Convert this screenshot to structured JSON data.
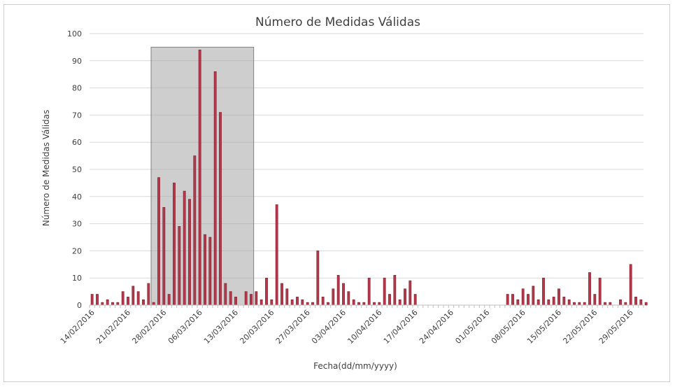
{
  "chart_data": {
    "type": "bar",
    "title": "Número de Medidas Válidas",
    "xlabel": "Fecha(dd/mm/yyyy)",
    "ylabel": "Número de Medidas Válidas",
    "ylim": [
      0,
      100
    ],
    "yticks": [
      0,
      10,
      20,
      30,
      40,
      50,
      60,
      70,
      80,
      90,
      100
    ],
    "grid": true,
    "x_start": "14/02/2016",
    "x_end": "31/05/2016",
    "xtick_labels": [
      "14/02/2016",
      "21/02/2016",
      "28/02/2016",
      "06/03/2016",
      "13/03/2016",
      "20/03/2016",
      "27/03/2016",
      "03/04/2016",
      "10/04/2016",
      "17/04/2016",
      "24/04/2016",
      "01/05/2016",
      "08/05/2016",
      "15/05/2016",
      "22/05/2016",
      "29/05/2016"
    ],
    "highlight": {
      "from": "26/02/2016",
      "to": "16/03/2016",
      "color": "#a6a6a6"
    },
    "bar_color": "#b5374a",
    "bar_edge_color": "#7a1f2e",
    "series": [
      {
        "values": [
          [
            "14/02/2016",
            4
          ],
          [
            "15/02/2016",
            4
          ],
          [
            "16/02/2016",
            1
          ],
          [
            "17/02/2016",
            2
          ],
          [
            "18/02/2016",
            1
          ],
          [
            "19/02/2016",
            1
          ],
          [
            "20/02/2016",
            5
          ],
          [
            "21/02/2016",
            3
          ],
          [
            "22/02/2016",
            7
          ],
          [
            "23/02/2016",
            5
          ],
          [
            "24/02/2016",
            2
          ],
          [
            "25/02/2016",
            8
          ],
          [
            "26/02/2016",
            1
          ],
          [
            "27/02/2016",
            47
          ],
          [
            "28/02/2016",
            36
          ],
          [
            "29/02/2016",
            4
          ],
          [
            "01/03/2016",
            45
          ],
          [
            "02/03/2016",
            29
          ],
          [
            "03/03/2016",
            42
          ],
          [
            "04/03/2016",
            39
          ],
          [
            "05/03/2016",
            55
          ],
          [
            "06/03/2016",
            94
          ],
          [
            "07/03/2016",
            26
          ],
          [
            "08/03/2016",
            25
          ],
          [
            "09/03/2016",
            86
          ],
          [
            "10/03/2016",
            71
          ],
          [
            "11/03/2016",
            8
          ],
          [
            "12/03/2016",
            5
          ],
          [
            "13/03/2016",
            3
          ],
          [
            "14/03/2016",
            0
          ],
          [
            "15/03/2016",
            5
          ],
          [
            "16/03/2016",
            4
          ],
          [
            "17/03/2016",
            5
          ],
          [
            "18/03/2016",
            2
          ],
          [
            "19/03/2016",
            10
          ],
          [
            "20/03/2016",
            2
          ],
          [
            "21/03/2016",
            37
          ],
          [
            "22/03/2016",
            8
          ],
          [
            "23/03/2016",
            6
          ],
          [
            "24/03/2016",
            2
          ],
          [
            "25/03/2016",
            3
          ],
          [
            "26/03/2016",
            2
          ],
          [
            "27/03/2016",
            1
          ],
          [
            "28/03/2016",
            1
          ],
          [
            "29/03/2016",
            20
          ],
          [
            "30/03/2016",
            3
          ],
          [
            "31/03/2016",
            1
          ],
          [
            "01/04/2016",
            6
          ],
          [
            "02/04/2016",
            11
          ],
          [
            "03/04/2016",
            8
          ],
          [
            "04/04/2016",
            5
          ],
          [
            "05/04/2016",
            2
          ],
          [
            "06/04/2016",
            1
          ],
          [
            "07/04/2016",
            1
          ],
          [
            "08/04/2016",
            10
          ],
          [
            "09/04/2016",
            1
          ],
          [
            "10/04/2016",
            1
          ],
          [
            "11/04/2016",
            10
          ],
          [
            "12/04/2016",
            4
          ],
          [
            "13/04/2016",
            11
          ],
          [
            "14/04/2016",
            2
          ],
          [
            "15/04/2016",
            6
          ],
          [
            "16/04/2016",
            9
          ],
          [
            "17/04/2016",
            4
          ],
          [
            "05/05/2016",
            4
          ],
          [
            "06/05/2016",
            4
          ],
          [
            "07/05/2016",
            2
          ],
          [
            "08/05/2016",
            6
          ],
          [
            "09/05/2016",
            4
          ],
          [
            "10/05/2016",
            7
          ],
          [
            "11/05/2016",
            2
          ],
          [
            "12/05/2016",
            10
          ],
          [
            "13/05/2016",
            2
          ],
          [
            "14/05/2016",
            3
          ],
          [
            "15/05/2016",
            6
          ],
          [
            "16/05/2016",
            3
          ],
          [
            "17/05/2016",
            2
          ],
          [
            "18/05/2016",
            1
          ],
          [
            "19/05/2016",
            1
          ],
          [
            "20/05/2016",
            1
          ],
          [
            "21/05/2016",
            12
          ],
          [
            "22/05/2016",
            4
          ],
          [
            "23/05/2016",
            10
          ],
          [
            "24/05/2016",
            1
          ],
          [
            "25/05/2016",
            1
          ],
          [
            "27/05/2016",
            2
          ],
          [
            "28/05/2016",
            1
          ],
          [
            "29/05/2016",
            15
          ],
          [
            "30/05/2016",
            3
          ],
          [
            "31/05/2016",
            2
          ],
          [
            "01/06/2016",
            1
          ]
        ]
      }
    ]
  }
}
